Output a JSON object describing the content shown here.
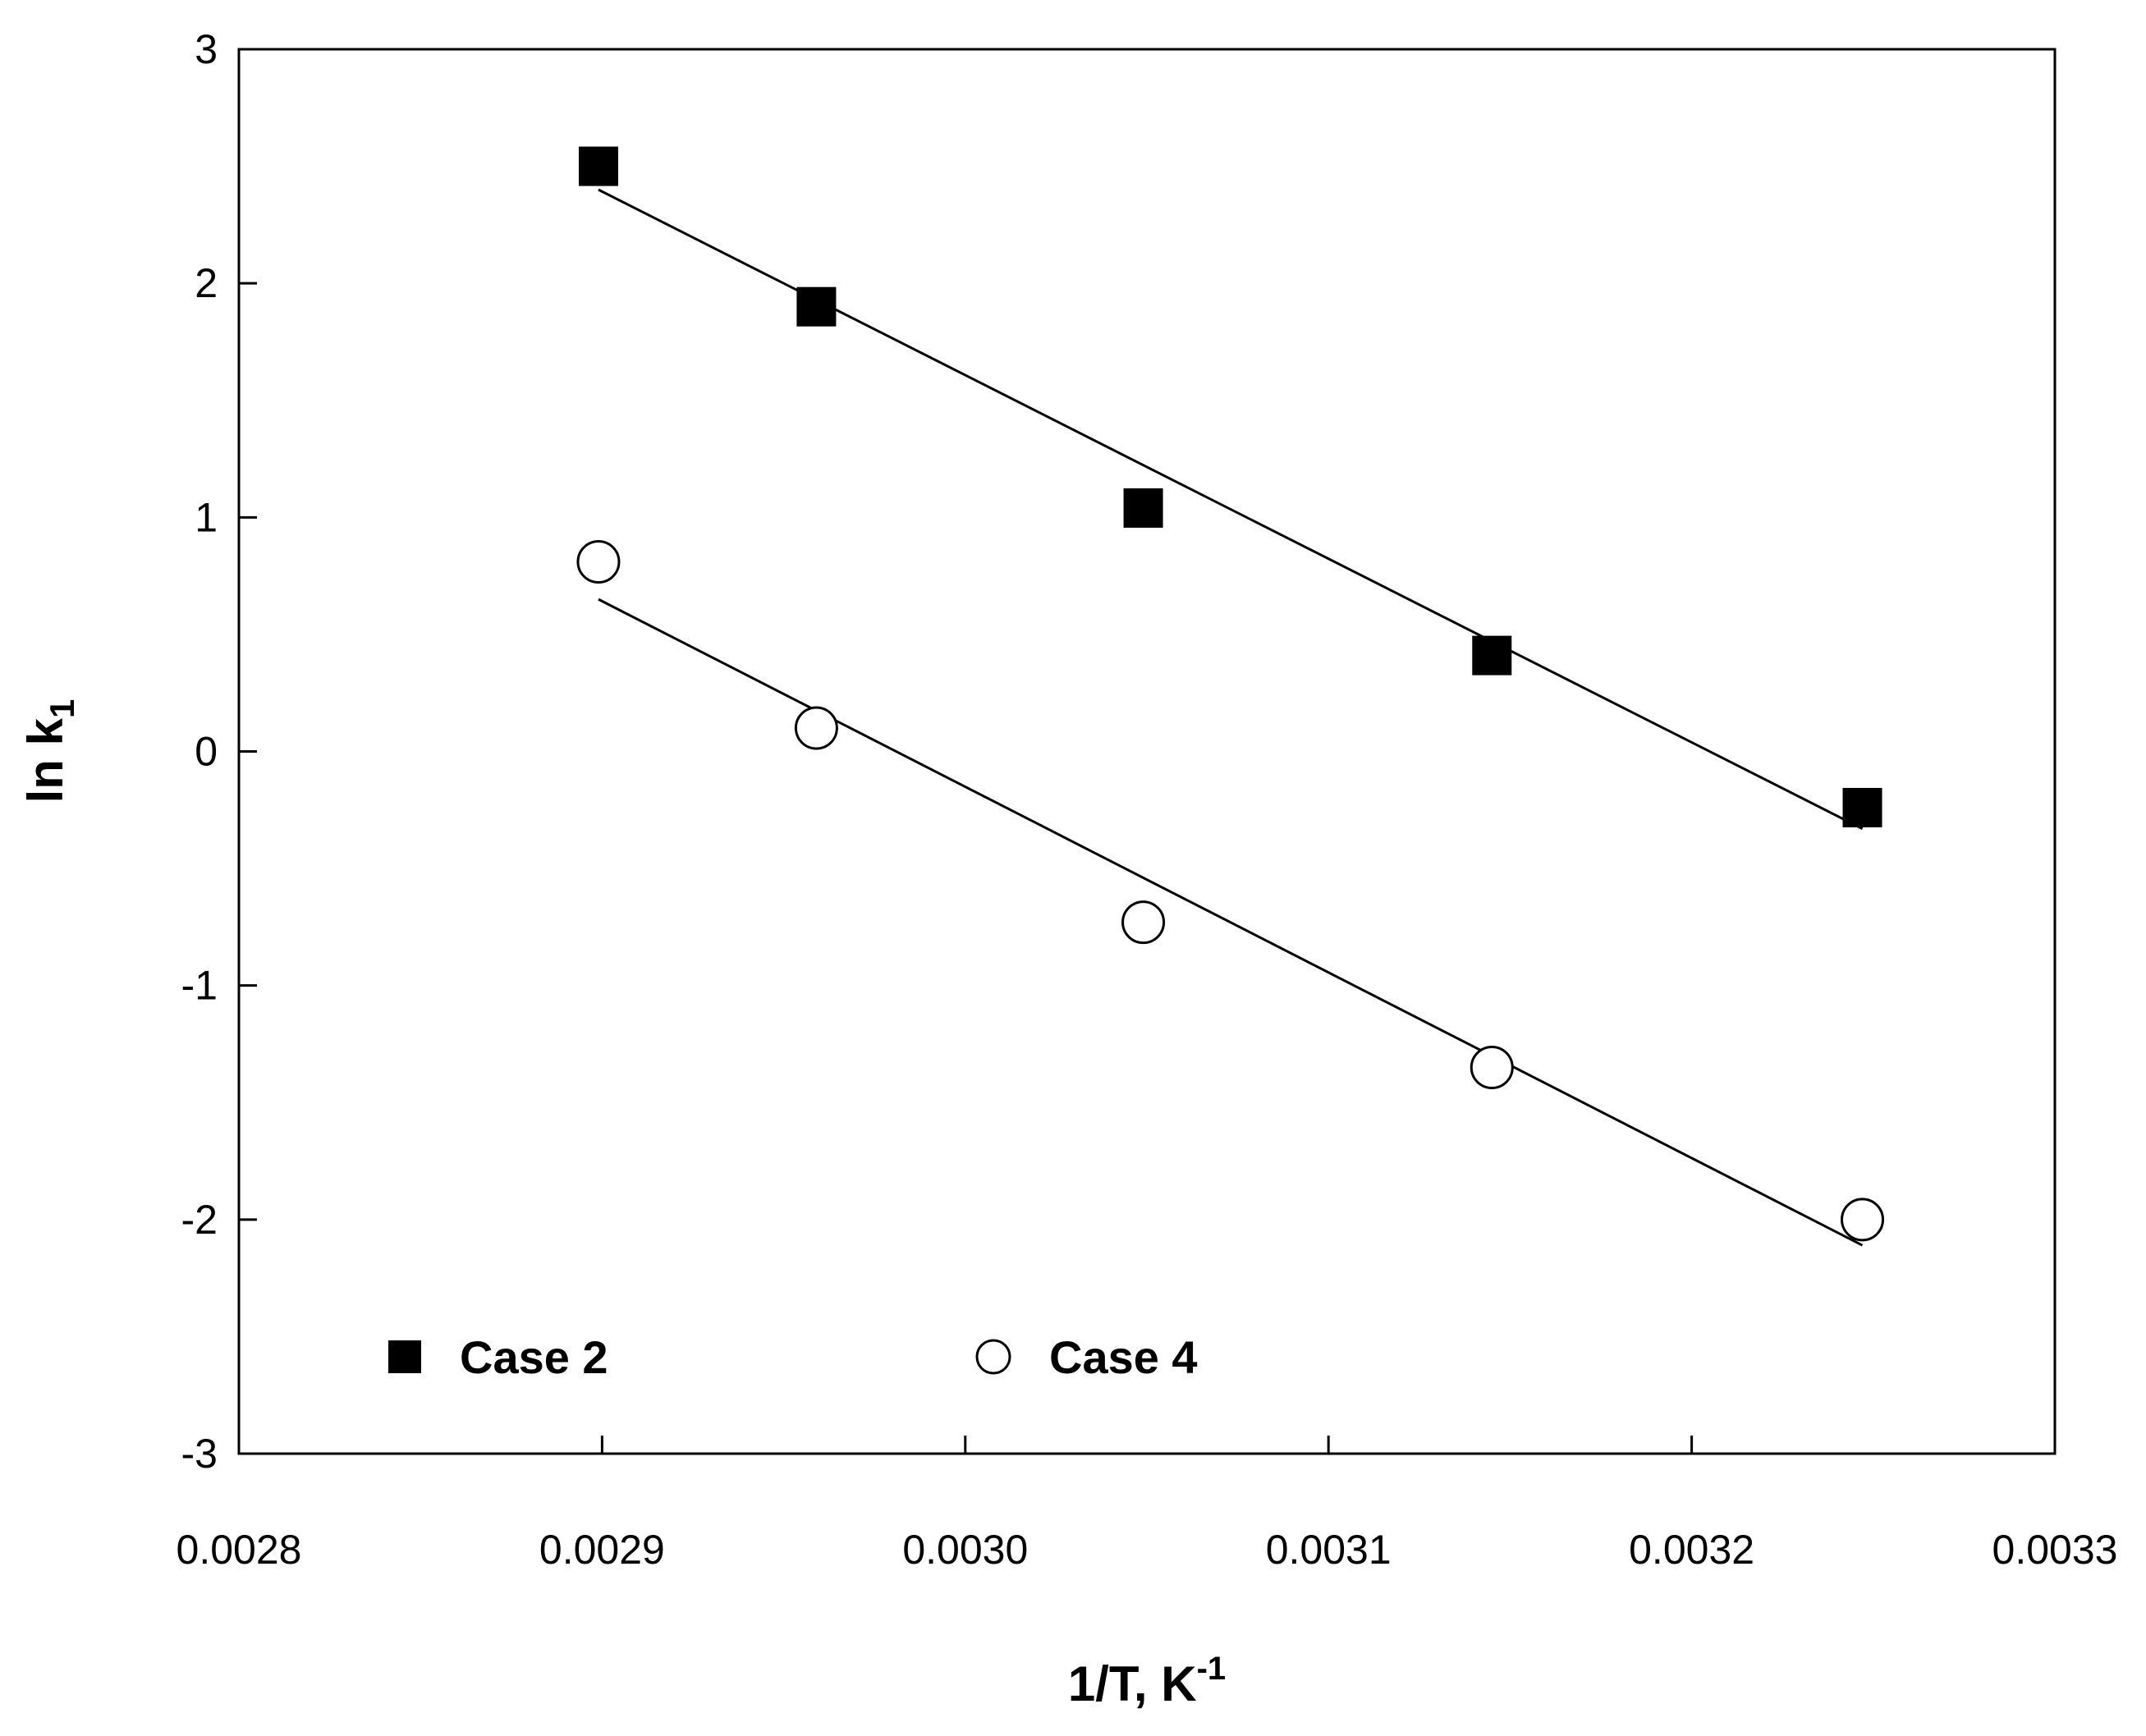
{
  "chart_data": {
    "type": "scatter",
    "title": "",
    "xlabel": {
      "main": "1/T, K",
      "sup": "-1"
    },
    "ylabel": {
      "main": "ln k",
      "sub": "1"
    },
    "xlim": [
      0.0028,
      0.0033
    ],
    "ylim": [
      -3,
      3
    ],
    "x_ticks": [
      0.0028,
      0.0029,
      0.003,
      0.0031,
      0.0032,
      0.0033
    ],
    "x_tick_labels": [
      "0.0028",
      "0.0029",
      "0.0030",
      "0.0031",
      "0.0032",
      "0.0033"
    ],
    "y_ticks": [
      -3,
      -2,
      -1,
      0,
      1,
      2,
      3
    ],
    "y_tick_labels": [
      "-3",
      "-2",
      "-1",
      "0",
      "1",
      "2",
      "3"
    ],
    "grid": false,
    "legend_position": "bottom-left inside, horizontal",
    "series": [
      {
        "name": "Case 2",
        "marker": "filled-square",
        "color": "#000000",
        "x": [
          0.002899,
          0.002959,
          0.003049,
          0.003145,
          0.003247
        ],
        "y": [
          2.5,
          1.9,
          1.04,
          0.41,
          -0.24
        ],
        "fit_line": {
          "x": [
            0.002899,
            0.003247
          ],
          "y": [
            2.4,
            -0.33
          ]
        }
      },
      {
        "name": "Case 4",
        "marker": "open-circle",
        "color": "#000000",
        "x": [
          0.002899,
          0.002959,
          0.003049,
          0.003145,
          0.003247
        ],
        "y": [
          0.81,
          0.1,
          -0.73,
          -1.35,
          -2.0
        ],
        "fit_line": {
          "x": [
            0.002899,
            0.003247
          ],
          "y": [
            0.65,
            -2.11
          ]
        }
      }
    ]
  }
}
